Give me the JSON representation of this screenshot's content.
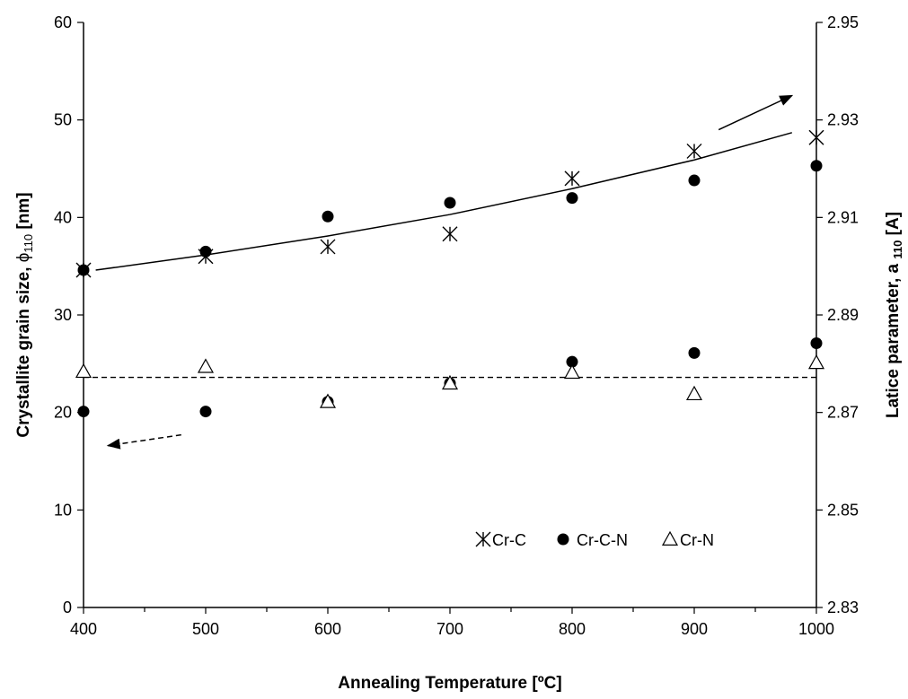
{
  "chart_data": {
    "type": "scatter",
    "xlabel": "Annealing Temperature [ºC]",
    "ylabel_left": {
      "main": "Crystallite grain size, ",
      "phi": "ϕ",
      "sub": "110",
      "unit": " [nm]"
    },
    "ylabel_right": {
      "main": "Latice parameter, a ",
      "sub": "110",
      "unit": " [A]"
    },
    "xlim": [
      400,
      1000
    ],
    "ylim_left": [
      0,
      60
    ],
    "ylim_right": [
      2.83,
      2.95
    ],
    "x_ticks": [
      "400",
      "500",
      "600",
      "700",
      "800",
      "900",
      "1000"
    ],
    "y_left_ticks": [
      "0",
      "10",
      "20",
      "30",
      "40",
      "50",
      "60"
    ],
    "y_right_ticks": [
      "2.83",
      "2.85",
      "2.87",
      "2.89",
      "2.91",
      "2.93",
      "2.95"
    ],
    "grid": false,
    "legend_position": "lower-right inside plot",
    "series": [
      {
        "name": "Cr-C",
        "marker": "asterisk",
        "axis": "right",
        "x": [
          400,
          500,
          600,
          700,
          800,
          900,
          1000
        ],
        "y": [
          2.8992,
          2.902,
          2.904,
          2.9066,
          2.918,
          2.9236,
          2.9264
        ]
      },
      {
        "name": "Cr-C-N",
        "marker": "filled-circle",
        "axis": "right",
        "x": [
          400,
          500,
          600,
          700,
          800,
          900,
          1000
        ],
        "y": [
          2.8992,
          2.903,
          2.9102,
          2.913,
          2.914,
          2.9176,
          2.9206
        ]
      },
      {
        "name": "Cr-C-N",
        "marker": "filled-circle",
        "axis": "left",
        "x": [
          400,
          500,
          600,
          700,
          800,
          900,
          1000
        ],
        "y": [
          20.1,
          20.1,
          21.1,
          23.0,
          25.2,
          26.1,
          27.1
        ]
      },
      {
        "name": "Cr-N",
        "marker": "open-triangle",
        "axis": "left",
        "x": [
          400,
          500,
          600,
          700,
          800,
          900,
          1000
        ],
        "y": [
          24.2,
          24.7,
          21.1,
          23.0,
          24.1,
          21.9,
          25.1
        ]
      }
    ],
    "trend_solid": {
      "axis": "right",
      "x": [
        410,
        500,
        600,
        700,
        800,
        900,
        980
      ],
      "y": [
        2.8992,
        2.9023,
        2.9062,
        2.9106,
        2.9159,
        2.9218,
        2.9274
      ]
    },
    "trend_dashed": {
      "axis": "left",
      "x": [
        400,
        1000
      ],
      "y": [
        23.6,
        23.6
      ]
    },
    "arrows": [
      {
        "style": "solid",
        "from": {
          "x": 920,
          "y": 49.0
        },
        "to": {
          "x": 980,
          "y": 52.5
        }
      },
      {
        "style": "dashed",
        "from": {
          "x": 480,
          "y": 17.7
        },
        "to": {
          "x": 420,
          "y": 16.6
        }
      }
    ],
    "legend": [
      "Cr-C",
      "Cr-C-N",
      "Cr-N"
    ]
  }
}
